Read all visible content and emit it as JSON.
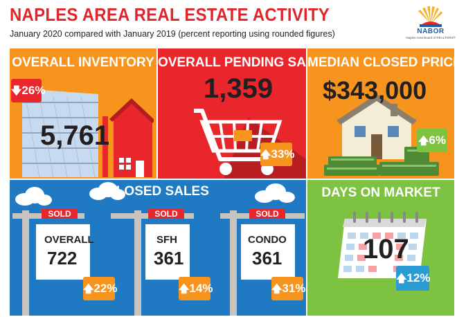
{
  "header": {
    "title": "NAPLES AREA REAL ESTATE ACTIVITY",
    "subtitle": "January 2020 compared with January 2019 (percent reporting using rounded figures)",
    "logo_text": "NABOR",
    "logo_subtext": "Naples Area Board of REALTORS®"
  },
  "overall_inventory": {
    "title": "OVERALL INVENTORY",
    "value": "5,761",
    "change": "26%",
    "direction": "down"
  },
  "overall_pending_sales": {
    "title": "OVERALL PENDING SALES",
    "value": "1,359",
    "change": "33%",
    "direction": "up"
  },
  "median_closed_price": {
    "title": "MEDIAN CLOSED PRICE",
    "value": "$343,000",
    "change": "6%",
    "direction": "up"
  },
  "closed_sales": {
    "title": "CLOSED SALES",
    "sold_label": "SOLD",
    "items": [
      {
        "label": "OVERALL",
        "value": "722",
        "change": "22%",
        "direction": "up"
      },
      {
        "label": "SFH",
        "value": "361",
        "change": "14%",
        "direction": "up"
      },
      {
        "label": "CONDO",
        "value": "361",
        "change": "31%",
        "direction": "up"
      }
    ]
  },
  "days_on_market": {
    "title": "DAYS ON MARKET",
    "value": "107",
    "change": "12%",
    "direction": "up"
  },
  "colors": {
    "brand_red": "#e0262b",
    "orange": "#f7941d",
    "red": "#e8262b",
    "blue": "#1f7ac3",
    "green": "#7ec241",
    "badge_blue": "#2b9bd6"
  },
  "icons": {
    "down_arrow": "down-arrow-icon",
    "up_arrow": "up-arrow-icon",
    "house": "house-icon",
    "cart": "shopping-cart-icon",
    "money_house": "house-money-icon",
    "calendar": "calendar-icon",
    "cloud": "cloud-icon",
    "sun_logo": "sun-logo-icon"
  }
}
